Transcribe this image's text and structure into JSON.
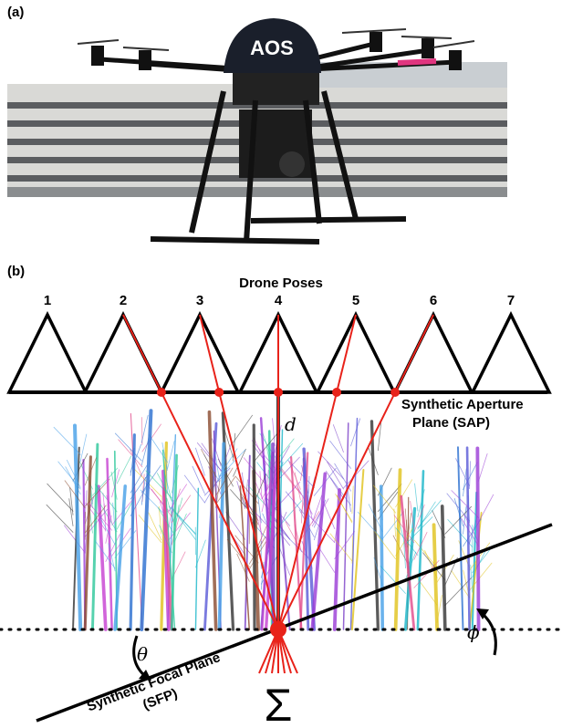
{
  "panels": {
    "a": "(a)",
    "b": "(b)"
  },
  "drone_logo": "AOS",
  "poses": {
    "title": "Drone Poses",
    "labels": [
      "1",
      "2",
      "3",
      "4",
      "5",
      "6",
      "7"
    ]
  },
  "distance_label": "d",
  "sap": {
    "line1": "Synthetic Aperture",
    "line2": "Plane (SAP)"
  },
  "sfp": {
    "line1": "Synthetic Focal Plane",
    "line2": "(SFP)"
  },
  "theta": "θ",
  "phi": "ϕ",
  "sum": "Σ"
}
